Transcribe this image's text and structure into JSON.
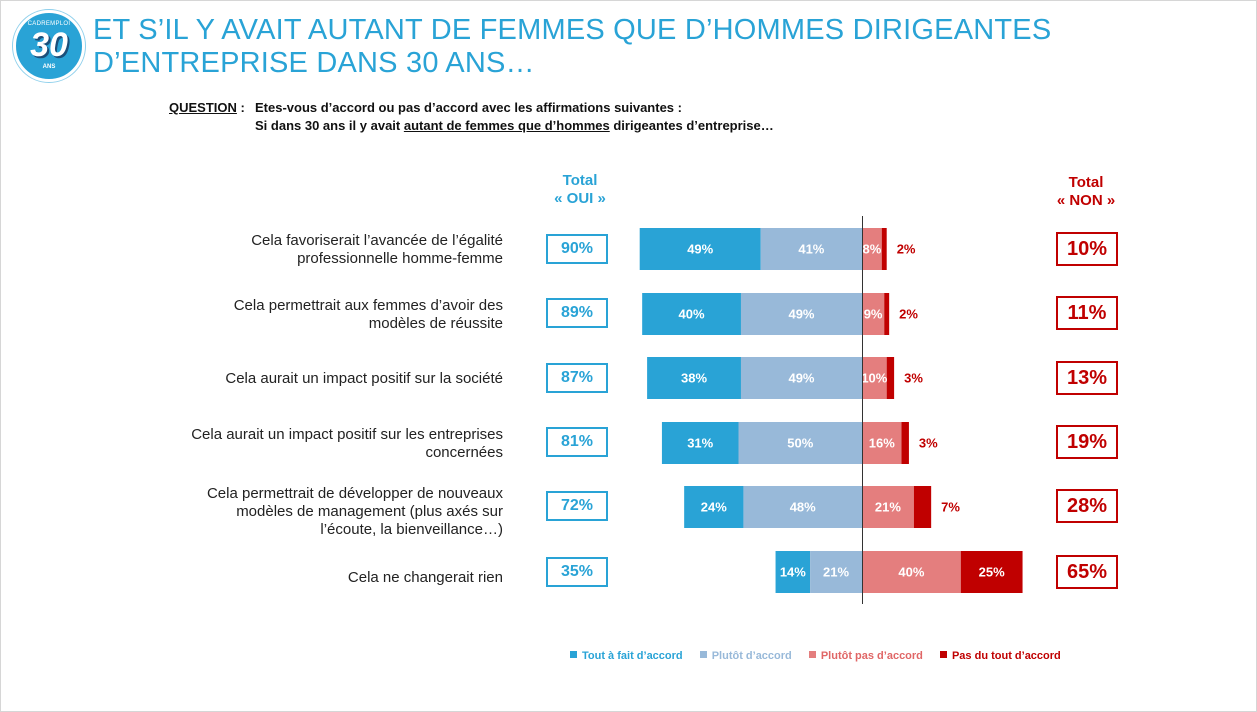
{
  "logo": {
    "top_text": "CADREMPLOI",
    "number": "30",
    "suffix": "ANS"
  },
  "title": {
    "line1": "ET S’IL Y AVAIT AUTANT DE FEMMES QUE D’HOMMES DIRIGEANTES",
    "line2": "D’ENTREPRISE DANS 30 ANS…"
  },
  "question": {
    "label": "QUESTION",
    "colon": " :",
    "line1": "Etes-vous d’accord ou pas d’accord avec les affirmations suivantes :",
    "line2_pre": "Si dans 30 ans il y avait ",
    "line2_u": "autant de femmes que d’hommes",
    "line2_post": " dirigeantes d’entreprise…"
  },
  "headers": {
    "yes_line1": "Total",
    "yes_line2": "« OUI »",
    "no_line1": "Total",
    "no_line2": "« NON »"
  },
  "colors": {
    "tout_a_fait": "#29a3d6",
    "plutot": "#98b9d9",
    "plutot_pas": "#e47e7e",
    "pas_du_tout": "#c00000"
  },
  "chart_data": {
    "type": "bar",
    "orientation": "horizontal-diverging",
    "categories": [
      "Cela favoriserait l’avancée de l’égalité professionnelle homme-femme",
      "Cela permettrait aux femmes d’avoir des modèles de réussite",
      "Cela aurait un impact positif sur la société",
      "Cela aurait un impact positif sur les entreprises concernées",
      "Cela permettrait de développer de nouveaux modèles de management (plus axés sur l’écoute, la bienveillance…)",
      "Cela ne changerait rien"
    ],
    "series": [
      {
        "name": "Tout à fait d’accord",
        "values": [
          49,
          40,
          38,
          31,
          24,
          14
        ],
        "labels": [
          "49%",
          "40%",
          "38%",
          "31%",
          "24%",
          "14%"
        ]
      },
      {
        "name": "Plutôt d’accord",
        "values": [
          41,
          49,
          49,
          50,
          48,
          21
        ],
        "labels": [
          "41%",
          "49%",
          "49%",
          "50%",
          "48%",
          "21%"
        ]
      },
      {
        "name": "Plutôt pas d’accord",
        "values": [
          8,
          9,
          10,
          16,
          21,
          40
        ],
        "labels": [
          "8%",
          "9%",
          "10%",
          "16%",
          "21%",
          "40%"
        ]
      },
      {
        "name": "Pas du tout d’accord",
        "values": [
          2,
          2,
          3,
          3,
          7,
          25
        ],
        "labels": [
          "2%",
          "2%",
          "3%",
          "3%",
          "7%",
          "25%"
        ]
      }
    ],
    "total_oui": [
      "90%",
      "89%",
      "87%",
      "81%",
      "72%",
      "35%"
    ],
    "total_non": [
      "10%",
      "11%",
      "13%",
      "19%",
      "28%",
      "65%"
    ],
    "legend_position": "bottom"
  }
}
